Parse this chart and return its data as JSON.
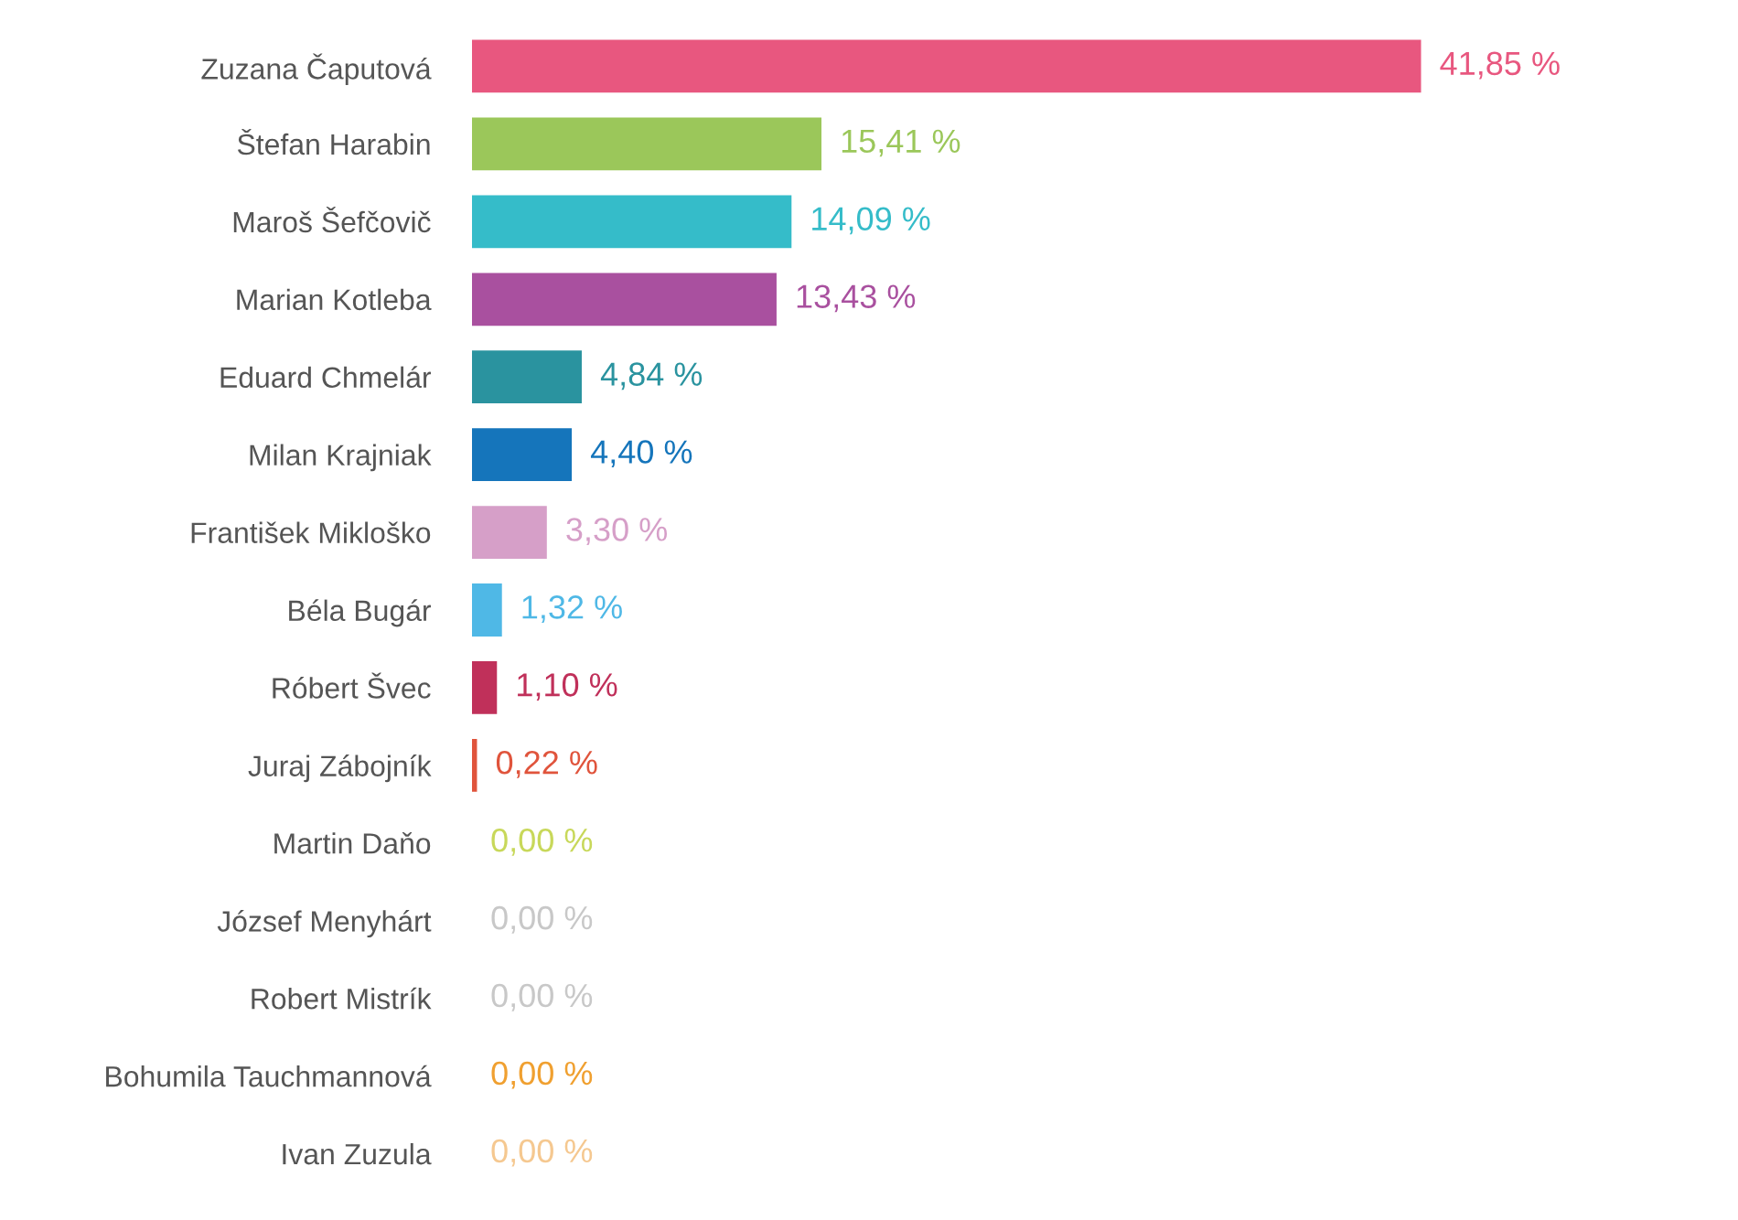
{
  "chart_data": {
    "type": "bar",
    "orientation": "horizontal",
    "categories": [
      "Zuzana Čaputová",
      "Štefan Harabin",
      "Maroš Šefčovič",
      "Marian Kotleba",
      "Eduard Chmelár",
      "Milan Krajniak",
      "František Mikloško",
      "Béla Bugár",
      "Róbert Švec",
      "Juraj Zábojník",
      "Martin Daňo",
      "József Menyhárt",
      "Robert Mistrík",
      "Bohumila Tauchmannová",
      "Ivan Zuzula"
    ],
    "values": [
      41.85,
      15.41,
      14.09,
      13.43,
      4.84,
      4.4,
      3.3,
      1.32,
      1.1,
      0.22,
      0.0,
      0.0,
      0.0,
      0.0,
      0.0
    ],
    "value_labels": [
      "41,85 %",
      "15,41 %",
      "14,09 %",
      "13,43 %",
      "4,84 %",
      "4,40 %",
      "3,30 %",
      "1,32 %",
      "1,10 %",
      "0,22 %",
      "0,00 %",
      "0,00 %",
      "0,00 %",
      "0,00 %",
      "0,00 %"
    ],
    "colors": [
      "#e8577f",
      "#9bc75a",
      "#35bcc9",
      "#a9509f",
      "#2a939f",
      "#1575bb",
      "#d69fc8",
      "#4fb8e6",
      "#c0305a",
      "#e0543c",
      "#c8d85a",
      "#c8c8c8",
      "#c8c8c8",
      "#f0a030",
      "#f5c890"
    ],
    "grid": false,
    "legend": false
  }
}
